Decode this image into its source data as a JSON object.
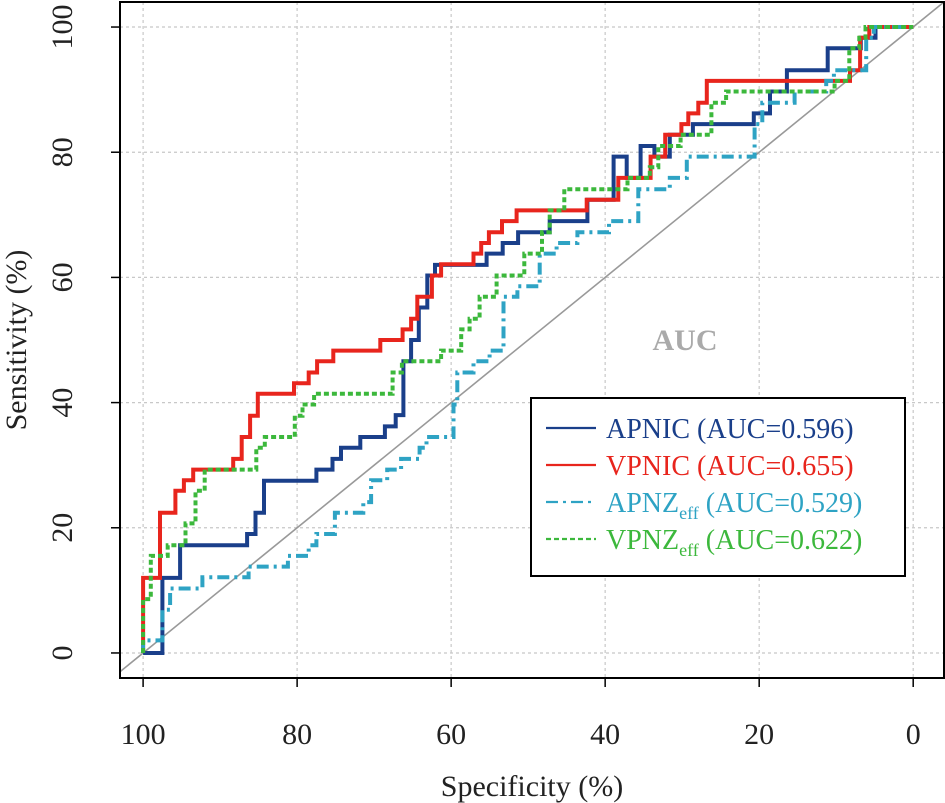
{
  "chart_data": {
    "type": "line",
    "title": "",
    "xlabel": "Specificity (%)",
    "ylabel": "Sensitivity (%)",
    "xlim": [
      103,
      -4
    ],
    "ylim": [
      -4,
      104
    ],
    "x_reversed": true,
    "grid": true,
    "x_ticks": [
      100,
      80,
      60,
      40,
      20,
      0
    ],
    "y_ticks": [
      0,
      20,
      40,
      60,
      80,
      100
    ],
    "annotation": "AUC",
    "reference_line": {
      "from": [
        100,
        0
      ],
      "to": [
        0,
        100
      ]
    },
    "legend_position": "bottom-right",
    "series": [
      {
        "name": "APNIC",
        "subscript": "",
        "auc_label": "(AUC=0.596)",
        "color": "#1a3f8a",
        "dash": "solid",
        "points": [
          [
            100,
            0
          ],
          [
            97.5,
            0
          ],
          [
            97.5,
            12
          ],
          [
            95.2,
            12
          ],
          [
            95.2,
            17.2
          ],
          [
            86.5,
            17.2
          ],
          [
            86.5,
            19
          ],
          [
            85.4,
            19
          ],
          [
            85.4,
            22.4
          ],
          [
            84.3,
            22.4
          ],
          [
            84.3,
            27.5
          ],
          [
            77.5,
            27.5
          ],
          [
            77.5,
            29.3
          ],
          [
            75.4,
            29.3
          ],
          [
            75.4,
            31
          ],
          [
            74.3,
            31
          ],
          [
            74.3,
            32.8
          ],
          [
            71.8,
            32.8
          ],
          [
            71.8,
            34.5
          ],
          [
            68.6,
            34.5
          ],
          [
            68.6,
            36.2
          ],
          [
            67.2,
            36.2
          ],
          [
            67.2,
            38
          ],
          [
            66.2,
            38
          ],
          [
            66.2,
            46.6
          ],
          [
            65.2,
            46.6
          ],
          [
            65.2,
            50
          ],
          [
            64.2,
            50
          ],
          [
            64.2,
            55.2
          ],
          [
            63.1,
            55.2
          ],
          [
            63.1,
            60.3
          ],
          [
            62.1,
            60.3
          ],
          [
            62.1,
            62
          ],
          [
            55.4,
            62
          ],
          [
            55.4,
            63.8
          ],
          [
            53.3,
            63.8
          ],
          [
            53.3,
            65.5
          ],
          [
            51.3,
            65.5
          ],
          [
            51.3,
            67.2
          ],
          [
            47.2,
            67.2
          ],
          [
            47.2,
            69
          ],
          [
            42.3,
            69
          ],
          [
            42.3,
            72.4
          ],
          [
            38.9,
            72.4
          ],
          [
            38.9,
            79.3
          ],
          [
            37.2,
            79.3
          ],
          [
            37.2,
            75.9
          ],
          [
            35.4,
            75.9
          ],
          [
            35.4,
            81
          ],
          [
            33.6,
            81
          ],
          [
            33.6,
            79.3
          ],
          [
            31.6,
            79.3
          ],
          [
            31.6,
            82.8
          ],
          [
            28.6,
            82.8
          ],
          [
            28.6,
            84.5
          ],
          [
            20.7,
            84.5
          ],
          [
            20.7,
            86.2
          ],
          [
            18.6,
            86.2
          ],
          [
            18.6,
            89.7
          ],
          [
            16.4,
            89.7
          ],
          [
            16.4,
            93.1
          ],
          [
            11.1,
            93.1
          ],
          [
            11.1,
            96.6
          ],
          [
            6.8,
            96.6
          ],
          [
            6.8,
            98.3
          ],
          [
            4.9,
            98.3
          ],
          [
            4.9,
            100
          ],
          [
            0,
            100
          ]
        ]
      },
      {
        "name": "VPNIC",
        "subscript": "",
        "auc_label": "(AUC=0.655)",
        "color": "#e8251d",
        "dash": "solid",
        "points": [
          [
            100,
            0
          ],
          [
            100,
            12
          ],
          [
            97.8,
            12
          ],
          [
            97.8,
            22.4
          ],
          [
            95.8,
            22.4
          ],
          [
            95.8,
            25.9
          ],
          [
            94.7,
            25.9
          ],
          [
            94.7,
            27.6
          ],
          [
            93.5,
            27.6
          ],
          [
            93.5,
            29.3
          ],
          [
            88.3,
            29.3
          ],
          [
            88.3,
            31
          ],
          [
            87.2,
            31
          ],
          [
            87.2,
            34.5
          ],
          [
            86.1,
            34.5
          ],
          [
            86.1,
            37.9
          ],
          [
            85.1,
            37.9
          ],
          [
            85.1,
            41.4
          ],
          [
            80.4,
            41.4
          ],
          [
            80.4,
            43.1
          ],
          [
            78.5,
            43.1
          ],
          [
            78.5,
            44.8
          ],
          [
            77.4,
            44.8
          ],
          [
            77.4,
            46.6
          ],
          [
            75.3,
            46.6
          ],
          [
            75.3,
            48.3
          ],
          [
            69.2,
            48.3
          ],
          [
            69.2,
            50
          ],
          [
            66.3,
            50
          ],
          [
            66.3,
            51.7
          ],
          [
            65.2,
            51.7
          ],
          [
            65.2,
            53.4
          ],
          [
            64.4,
            53.4
          ],
          [
            64.4,
            56.9
          ],
          [
            62.5,
            56.9
          ],
          [
            62.5,
            60.3
          ],
          [
            61.3,
            60.3
          ],
          [
            61.3,
            62.1
          ],
          [
            57.1,
            62.1
          ],
          [
            57.1,
            63.8
          ],
          [
            56.1,
            63.8
          ],
          [
            56.1,
            65.5
          ],
          [
            55.1,
            65.5
          ],
          [
            55.1,
            67.2
          ],
          [
            53.4,
            67.2
          ],
          [
            53.4,
            69
          ],
          [
            51.5,
            69
          ],
          [
            51.5,
            70.7
          ],
          [
            42.4,
            70.7
          ],
          [
            42.4,
            72.4
          ],
          [
            38.3,
            72.4
          ],
          [
            38.3,
            75.9
          ],
          [
            34.1,
            75.9
          ],
          [
            34.1,
            79.3
          ],
          [
            32.2,
            79.3
          ],
          [
            32.2,
            82.8
          ],
          [
            30.1,
            82.8
          ],
          [
            30.1,
            84.5
          ],
          [
            29.2,
            84.5
          ],
          [
            29.2,
            86.2
          ],
          [
            27.9,
            86.2
          ],
          [
            27.9,
            87.9
          ],
          [
            26.8,
            87.9
          ],
          [
            26.8,
            91.4
          ],
          [
            8.2,
            91.4
          ],
          [
            8.2,
            93.1
          ],
          [
            6.9,
            93.1
          ],
          [
            6.9,
            98.3
          ],
          [
            5.7,
            98.3
          ],
          [
            5.7,
            100
          ],
          [
            0,
            100
          ]
        ]
      },
      {
        "name": "APNZ",
        "subscript": "eff",
        "auc_label": "(AUC=0.529)",
        "color": "#2ea3c4",
        "dash": "12,5,3,5",
        "points": [
          [
            100,
            0
          ],
          [
            100,
            2
          ],
          [
            97.5,
            2
          ],
          [
            97.5,
            6.9
          ],
          [
            96.5,
            6.9
          ],
          [
            96.5,
            10.3
          ],
          [
            92.3,
            10.3
          ],
          [
            92.3,
            12.1
          ],
          [
            86.3,
            12.1
          ],
          [
            86.3,
            13.8
          ],
          [
            81.2,
            13.8
          ],
          [
            81.2,
            15.5
          ],
          [
            78.5,
            15.5
          ],
          [
            78.5,
            17.2
          ],
          [
            77.5,
            17.2
          ],
          [
            77.5,
            19
          ],
          [
            75.1,
            19
          ],
          [
            75.1,
            22.4
          ],
          [
            71.4,
            22.4
          ],
          [
            71.4,
            24.1
          ],
          [
            70.4,
            24.1
          ],
          [
            70.4,
            27.6
          ],
          [
            68.3,
            27.6
          ],
          [
            68.3,
            29.3
          ],
          [
            66.5,
            29.3
          ],
          [
            66.5,
            31
          ],
          [
            64.1,
            31
          ],
          [
            64.1,
            32.8
          ],
          [
            63.2,
            32.8
          ],
          [
            63.2,
            34.5
          ],
          [
            59.7,
            34.5
          ],
          [
            59.7,
            39.7
          ],
          [
            59.2,
            39.7
          ],
          [
            59.2,
            44.8
          ],
          [
            57.1,
            44.8
          ],
          [
            57.1,
            46.6
          ],
          [
            55,
            46.6
          ],
          [
            55,
            48.3
          ],
          [
            53.2,
            48.3
          ],
          [
            53.2,
            56.9
          ],
          [
            51.4,
            56.9
          ],
          [
            51.4,
            58.6
          ],
          [
            48.5,
            58.6
          ],
          [
            48.5,
            63.8
          ],
          [
            46.3,
            63.8
          ],
          [
            46.3,
            65.5
          ],
          [
            43.6,
            65.5
          ],
          [
            43.6,
            67.2
          ],
          [
            39.5,
            67.2
          ],
          [
            39.5,
            69
          ],
          [
            35.7,
            69
          ],
          [
            35.7,
            74.1
          ],
          [
            31.6,
            74.1
          ],
          [
            31.6,
            75.9
          ],
          [
            29.4,
            75.9
          ],
          [
            29.4,
            79.3
          ],
          [
            20.6,
            79.3
          ],
          [
            20.6,
            84.5
          ],
          [
            19.6,
            84.5
          ],
          [
            19.6,
            87.9
          ],
          [
            15.4,
            87.9
          ],
          [
            15.4,
            89.7
          ],
          [
            11.3,
            89.7
          ],
          [
            11.3,
            91.4
          ],
          [
            10.3,
            91.4
          ],
          [
            10.3,
            93.1
          ],
          [
            6.1,
            93.1
          ],
          [
            6.1,
            98.3
          ],
          [
            5.1,
            98.3
          ],
          [
            5.1,
            100
          ],
          [
            0,
            100
          ]
        ]
      },
      {
        "name": "VPNZ",
        "subscript": "eff",
        "auc_label": "(AUC=0.622)",
        "color": "#3cb83c",
        "dash": "5,3",
        "points": [
          [
            100,
            0
          ],
          [
            100,
            8.6
          ],
          [
            99,
            8.6
          ],
          [
            99,
            15.5
          ],
          [
            96.8,
            15.5
          ],
          [
            96.8,
            17.2
          ],
          [
            94.5,
            17.2
          ],
          [
            94.5,
            20.7
          ],
          [
            93.2,
            20.7
          ],
          [
            93.2,
            25.9
          ],
          [
            92,
            25.9
          ],
          [
            92,
            29.3
          ],
          [
            85.3,
            29.3
          ],
          [
            85.3,
            32.8
          ],
          [
            84.2,
            32.8
          ],
          [
            84.2,
            34.5
          ],
          [
            80.3,
            34.5
          ],
          [
            80.3,
            37.9
          ],
          [
            79.3,
            37.9
          ],
          [
            79.3,
            39.7
          ],
          [
            77.8,
            39.7
          ],
          [
            77.8,
            41.4
          ],
          [
            67.6,
            41.4
          ],
          [
            67.6,
            44.8
          ],
          [
            66.4,
            44.8
          ],
          [
            66.4,
            46.6
          ],
          [
            61.3,
            46.6
          ],
          [
            61.3,
            48.3
          ],
          [
            58.7,
            48.3
          ],
          [
            58.7,
            51.7
          ],
          [
            57.6,
            51.7
          ],
          [
            57.6,
            53.4
          ],
          [
            56.3,
            53.4
          ],
          [
            56.3,
            56.9
          ],
          [
            54.1,
            56.9
          ],
          [
            54.1,
            60.3
          ],
          [
            50.5,
            60.3
          ],
          [
            50.5,
            63.8
          ],
          [
            48.2,
            63.8
          ],
          [
            48.2,
            67.2
          ],
          [
            47.2,
            67.2
          ],
          [
            47.2,
            70.7
          ],
          [
            45.3,
            70.7
          ],
          [
            45.3,
            74.1
          ],
          [
            37.1,
            74.1
          ],
          [
            37.1,
            75.9
          ],
          [
            34.2,
            75.9
          ],
          [
            34.2,
            77.6
          ],
          [
            33.1,
            77.6
          ],
          [
            33.1,
            81
          ],
          [
            30.2,
            81
          ],
          [
            30.2,
            82.8
          ],
          [
            26.2,
            82.8
          ],
          [
            26.2,
            87.9
          ],
          [
            24.3,
            87.9
          ],
          [
            24.3,
            89.7
          ],
          [
            10.2,
            89.7
          ],
          [
            10.2,
            91.4
          ],
          [
            8.3,
            91.4
          ],
          [
            8.3,
            96.6
          ],
          [
            7,
            96.6
          ],
          [
            7,
            98.3
          ],
          [
            6.2,
            98.3
          ],
          [
            6.2,
            100
          ],
          [
            0,
            100
          ]
        ]
      }
    ]
  }
}
